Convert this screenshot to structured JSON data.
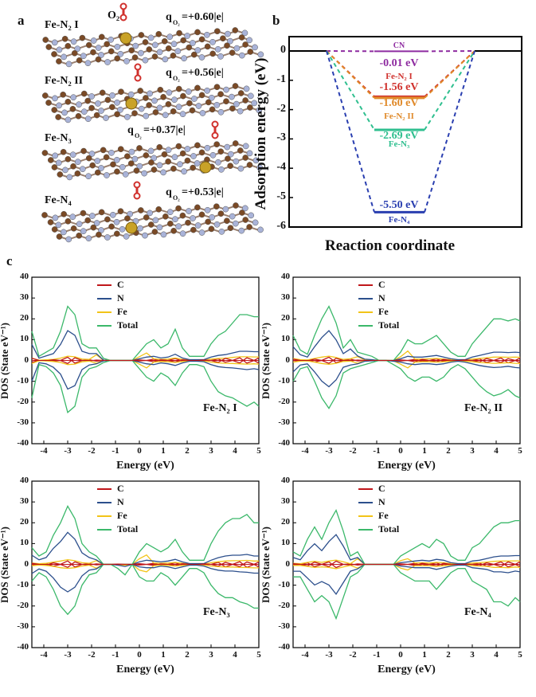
{
  "panel_a": {
    "letter": "a",
    "o2_label": "O₂",
    "structures": [
      {
        "name": "Fe-N₂ I",
        "charge": "q",
        "sub": "O₂",
        "value": "=+0.60|e|"
      },
      {
        "name": "Fe-N₂ II",
        "charge": "q",
        "sub": "O₂",
        "value": "=+0.56|e|"
      },
      {
        "name": "Fe-N₃",
        "charge": "q",
        "sub": "O₂",
        "value": "=+0.37|e|"
      },
      {
        "name": "Fe-N₄",
        "charge": "q",
        "sub": "O₂",
        "value": "=+0.53|e|"
      }
    ]
  },
  "colors": {
    "CN": "#8e2ba0",
    "FeN2I": "#d0312d",
    "FeN2II": "#e08a2a",
    "FeN3": "#2fbf8f",
    "FeN4": "#2a3fb0",
    "C": "#c0171b",
    "N": "#2c4f8c",
    "Fe": "#f2c418",
    "Total": "#3bb86a"
  },
  "chart_data": [
    {
      "type": "line",
      "letter": "b",
      "title": "",
      "xlabel": "Reaction coordinate",
      "ylabel": "Adsorption energy (eV)",
      "ylim": [
        -6,
        0.5
      ],
      "yticks": [
        "0",
        "-1",
        "-2",
        "-3",
        "-4",
        "-5",
        "-6"
      ],
      "series": [
        {
          "name": "CN",
          "value": -0.01,
          "value_label": "-0.01 eV",
          "color_key": "CN"
        },
        {
          "name": "Fe-N₂ I",
          "value": -1.56,
          "value_label": "-1.56 eV",
          "color_key": "FeN2I"
        },
        {
          "name": "Fe-N₂ II",
          "value": -1.6,
          "value_label": "-1.60 eV",
          "color_key": "FeN2II"
        },
        {
          "name": "Fe-N₃",
          "value": -2.69,
          "value_label": "-2.69 eV",
          "color_key": "FeN3"
        },
        {
          "name": "Fe-N₄",
          "value": -5.5,
          "value_label": "-5.50 eV",
          "color_key": "FeN4"
        }
      ]
    },
    {
      "type": "line",
      "letter": "c",
      "xlabel": "Energy (eV)",
      "ylabel": "DOS (State eV⁻¹)",
      "xlim": [
        -4.5,
        5
      ],
      "ylim": [
        -40,
        40
      ],
      "xticks": [
        "-4",
        "-3",
        "-2",
        "-1",
        "0",
        "1",
        "2",
        "3",
        "4",
        "5"
      ],
      "yticks": [
        "40",
        "30",
        "20",
        "10",
        "0",
        "-10",
        "-20",
        "-30",
        "-40"
      ],
      "legend": [
        "C",
        "N",
        "Fe",
        "Total"
      ],
      "legend_position": "top-left",
      "x": [
        -4.5,
        -4.2,
        -3.9,
        -3.6,
        -3.3,
        -3.0,
        -2.7,
        -2.4,
        -2.1,
        -1.8,
        -1.5,
        -1.2,
        -0.9,
        -0.6,
        -0.3,
        0,
        0.3,
        0.6,
        0.9,
        1.2,
        1.5,
        1.8,
        2.1,
        2.4,
        2.7,
        3.0,
        3.3,
        3.6,
        3.9,
        4.2,
        4.5,
        4.8,
        5.0
      ],
      "panels": [
        {
          "label": "Fe-N₂ I",
          "total_up": [
            14,
            2,
            4,
            6,
            14,
            26,
            22,
            8,
            6,
            6,
            1,
            0,
            0,
            0,
            0,
            4,
            8,
            10,
            6,
            8,
            15,
            6,
            2,
            2,
            2,
            8,
            12,
            14,
            18,
            22,
            22,
            21,
            21
          ],
          "total_down": [
            -18,
            -2,
            -3,
            -6,
            -12,
            -25,
            -22,
            -8,
            -4,
            -3,
            -1,
            0,
            0,
            0,
            0,
            -4,
            -8,
            -10,
            -6,
            -8,
            -12,
            -6,
            -2,
            -2,
            -3,
            -10,
            -15,
            -17,
            -18,
            -20,
            -22,
            -20,
            -22
          ]
        },
        {
          "label": "Fe-N₂ II",
          "total_up": [
            12,
            5,
            3,
            12,
            20,
            26,
            18,
            6,
            10,
            4,
            3,
            2,
            0,
            0,
            0,
            4,
            10,
            8,
            8,
            10,
            12,
            8,
            4,
            2,
            2,
            8,
            12,
            16,
            20,
            20,
            19,
            20,
            19
          ],
          "total_down": [
            -10,
            -4,
            -3,
            -10,
            -18,
            -23,
            -17,
            -6,
            -4,
            -3,
            -2,
            -1,
            0,
            0,
            -2,
            -4,
            -8,
            -10,
            -8,
            -8,
            -10,
            -8,
            -4,
            -2,
            -4,
            -8,
            -12,
            -15,
            -17,
            -16,
            -14,
            -17,
            -18
          ]
        },
        {
          "label": "Fe-N₃",
          "total_up": [
            8,
            4,
            6,
            14,
            20,
            28,
            22,
            10,
            6,
            4,
            0,
            0,
            0,
            0,
            0,
            6,
            10,
            8,
            6,
            8,
            12,
            6,
            2,
            2,
            2,
            10,
            16,
            20,
            22,
            22,
            24,
            20,
            20
          ],
          "total_down": [
            -8,
            -4,
            -6,
            -12,
            -20,
            -24,
            -20,
            -10,
            -5,
            -4,
            0,
            0,
            -2,
            -5,
            0,
            -6,
            -8,
            -8,
            -4,
            -6,
            -10,
            -6,
            -2,
            -2,
            -4,
            -10,
            -14,
            -16,
            -16,
            -18,
            -19,
            -21,
            -21
          ]
        },
        {
          "label": "Fe-N₄",
          "total_up": [
            6,
            4,
            12,
            18,
            12,
            20,
            26,
            16,
            4,
            6,
            0,
            0,
            0,
            0,
            0,
            4,
            6,
            8,
            10,
            8,
            12,
            10,
            4,
            2,
            2,
            8,
            10,
            14,
            18,
            20,
            20,
            21,
            21
          ],
          "total_down": [
            -6,
            -6,
            -12,
            -18,
            -15,
            -18,
            -26,
            -16,
            -6,
            -4,
            0,
            0,
            0,
            0,
            0,
            -4,
            -6,
            -8,
            -8,
            -8,
            -12,
            -8,
            -4,
            -2,
            -2,
            -8,
            -10,
            -12,
            -18,
            -18,
            -20,
            -16,
            -18
          ]
        }
      ]
    }
  ]
}
